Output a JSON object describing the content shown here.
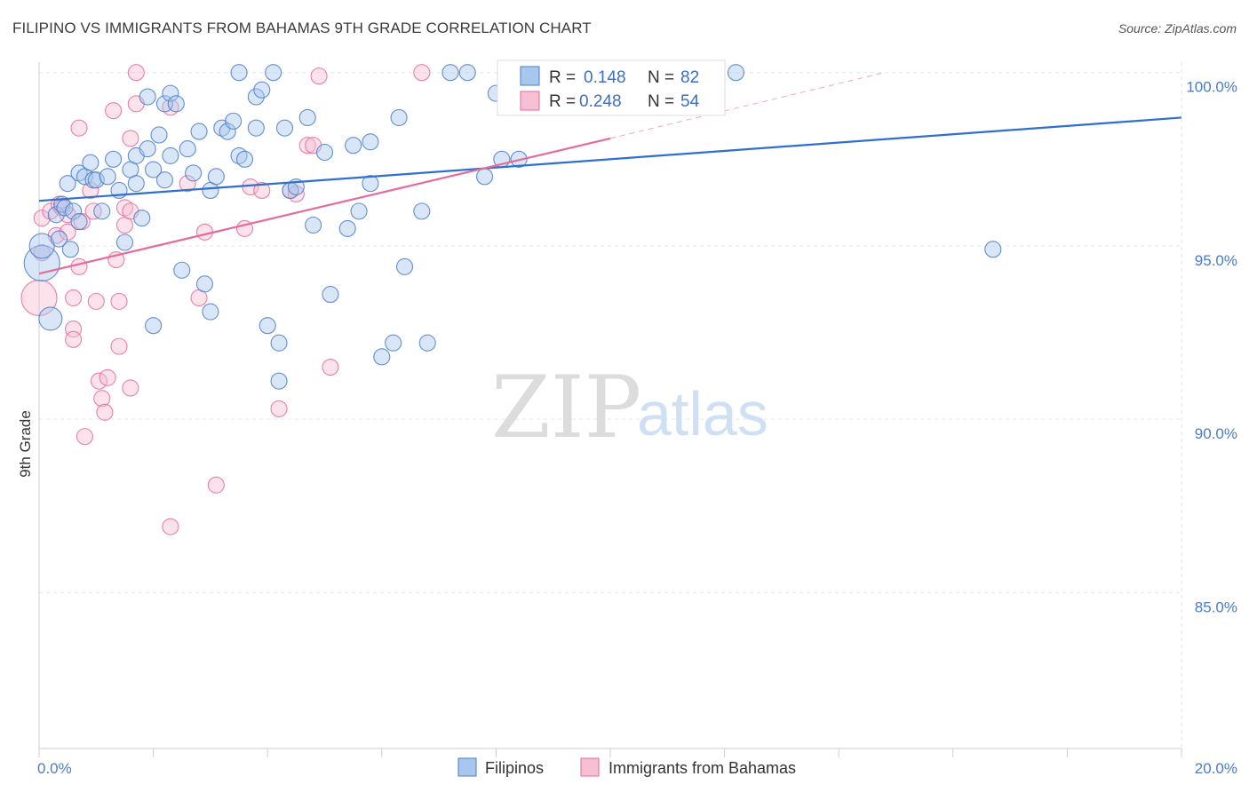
{
  "title": "FILIPINO VS IMMIGRANTS FROM BAHAMAS 9TH GRADE CORRELATION CHART",
  "source": "Source: ZipAtlas.com",
  "watermark": {
    "zip": "ZIP",
    "atlas": "atlas"
  },
  "colors": {
    "blue": "#4a7cc9",
    "blue_fill": "#a9c7ee",
    "blue_line": "#2f6fd0",
    "pink": "#e56b9b",
    "pink_fill": "#f7bfd3",
    "grid": "#e6e6e6"
  },
  "chart_data": {
    "type": "scatter",
    "title": "FILIPINO VS IMMIGRANTS FROM BAHAMAS 9TH GRADE CORRELATION CHART",
    "xlabel": "",
    "ylabel": "9th Grade",
    "xlim": [
      0,
      20
    ],
    "ylim": [
      80.5,
      100.3
    ],
    "x_tick_labels": [
      {
        "value": 0,
        "label": "0.0%"
      },
      {
        "value": 20,
        "label": "20.0%"
      }
    ],
    "y_tick_labels": [
      {
        "value": 100,
        "label": "100.0%"
      },
      {
        "value": 95,
        "label": "95.0%"
      },
      {
        "value": 90,
        "label": "90.0%"
      },
      {
        "value": 85,
        "label": "85.0%"
      }
    ],
    "legend": {
      "entries": [
        {
          "name": "Filipinos",
          "r_label": "R =",
          "r_value": "0.148",
          "n_label": "N =",
          "n_value": "82"
        },
        {
          "name": "Immigrants from Bahamas",
          "r_label": "R =",
          "r_value": "0.248",
          "n_label": "N =",
          "n_value": "54"
        }
      ]
    },
    "series": [
      {
        "name": "Filipinos",
        "trend": {
          "x": [
            0,
            20
          ],
          "y": [
            96.3,
            98.7
          ]
        },
        "points": [
          [
            0.05,
            94.5
          ],
          [
            0.05,
            95.0
          ],
          [
            0.2,
            92.9
          ],
          [
            0.3,
            95.9
          ],
          [
            0.35,
            95.2
          ],
          [
            0.4,
            96.2
          ],
          [
            0.45,
            96.1
          ],
          [
            0.5,
            96.8
          ],
          [
            0.55,
            94.9
          ],
          [
            0.6,
            96.0
          ],
          [
            0.7,
            95.7
          ],
          [
            0.7,
            97.1
          ],
          [
            0.8,
            97.0
          ],
          [
            0.9,
            97.4
          ],
          [
            0.95,
            96.9
          ],
          [
            1.0,
            96.9
          ],
          [
            1.1,
            96.0
          ],
          [
            1.2,
            97.0
          ],
          [
            1.3,
            97.5
          ],
          [
            1.4,
            96.6
          ],
          [
            1.5,
            95.1
          ],
          [
            1.6,
            97.2
          ],
          [
            1.7,
            96.8
          ],
          [
            1.7,
            97.6
          ],
          [
            1.8,
            95.8
          ],
          [
            1.9,
            97.8
          ],
          [
            2.0,
            97.2
          ],
          [
            1.9,
            99.3
          ],
          [
            2.0,
            92.7
          ],
          [
            2.2,
            96.9
          ],
          [
            2.1,
            98.2
          ],
          [
            2.2,
            99.1
          ],
          [
            2.3,
            99.4
          ],
          [
            2.4,
            99.1
          ],
          [
            2.3,
            97.6
          ],
          [
            2.5,
            94.3
          ],
          [
            2.6,
            97.8
          ],
          [
            2.7,
            97.1
          ],
          [
            2.8,
            98.3
          ],
          [
            2.9,
            93.9
          ],
          [
            3.0,
            93.1
          ],
          [
            3.0,
            96.6
          ],
          [
            3.1,
            97.0
          ],
          [
            3.2,
            98.4
          ],
          [
            3.3,
            98.3
          ],
          [
            3.4,
            98.6
          ],
          [
            3.5,
            100.0
          ],
          [
            3.5,
            97.6
          ],
          [
            3.6,
            97.5
          ],
          [
            3.8,
            98.4
          ],
          [
            3.8,
            99.3
          ],
          [
            3.9,
            99.5
          ],
          [
            4.0,
            92.7
          ],
          [
            4.1,
            100.0
          ],
          [
            4.2,
            92.2
          ],
          [
            4.2,
            91.1
          ],
          [
            4.3,
            98.4
          ],
          [
            4.4,
            96.6
          ],
          [
            4.5,
            96.7
          ],
          [
            4.7,
            98.7
          ],
          [
            4.8,
            95.6
          ],
          [
            5.0,
            97.7
          ],
          [
            5.1,
            93.6
          ],
          [
            5.4,
            95.5
          ],
          [
            5.5,
            97.9
          ],
          [
            5.6,
            96.0
          ],
          [
            5.8,
            96.8
          ],
          [
            5.8,
            98.0
          ],
          [
            6.0,
            91.8
          ],
          [
            6.2,
            92.2
          ],
          [
            6.3,
            98.7
          ],
          [
            6.4,
            94.4
          ],
          [
            6.7,
            96.0
          ],
          [
            6.8,
            92.2
          ],
          [
            7.2,
            100.0
          ],
          [
            7.5,
            100.0
          ],
          [
            7.8,
            97.0
          ],
          [
            8.0,
            99.4
          ],
          [
            8.1,
            97.5
          ],
          [
            8.4,
            97.5
          ],
          [
            8.7,
            100.0
          ],
          [
            12.2,
            100.0
          ],
          [
            16.7,
            94.9
          ]
        ],
        "sizes": [
          20,
          14,
          13,
          9,
          9,
          9,
          9,
          9,
          9,
          9,
          9,
          9,
          9,
          9,
          9,
          9,
          9,
          9,
          9,
          9,
          9,
          9,
          9,
          9,
          9,
          9,
          9,
          9,
          9,
          9,
          9,
          9,
          9,
          9,
          9,
          9,
          9,
          9,
          9,
          9,
          9,
          9,
          9,
          9,
          9,
          9,
          9,
          9,
          9,
          9,
          9,
          9,
          9,
          9,
          9,
          9,
          9,
          9,
          9,
          9,
          9,
          9,
          9,
          9,
          9,
          9,
          9,
          9,
          9,
          9,
          9,
          9,
          9,
          9,
          9,
          9,
          9,
          9,
          9,
          9,
          9,
          9,
          9
        ]
      },
      {
        "name": "Immigrants from Bahamas",
        "trend": {
          "x": [
            0,
            10
          ],
          "y": [
            94.2,
            98.1
          ]
        },
        "trend_dashed": {
          "x": [
            10,
            14.8
          ],
          "y": [
            98.1,
            100.0
          ]
        },
        "points": [
          [
            0.0,
            93.5
          ],
          [
            0.05,
            95.8
          ],
          [
            0.05,
            94.8
          ],
          [
            0.2,
            96.0
          ],
          [
            0.3,
            95.3
          ],
          [
            0.35,
            96.2
          ],
          [
            0.4,
            96.1
          ],
          [
            0.5,
            95.4
          ],
          [
            0.5,
            95.9
          ],
          [
            0.6,
            93.5
          ],
          [
            0.6,
            92.6
          ],
          [
            0.6,
            92.3
          ],
          [
            0.7,
            98.4
          ],
          [
            0.7,
            94.4
          ],
          [
            0.75,
            95.7
          ],
          [
            0.8,
            89.5
          ],
          [
            0.9,
            96.6
          ],
          [
            0.95,
            96.0
          ],
          [
            1.0,
            93.4
          ],
          [
            1.05,
            91.1
          ],
          [
            1.1,
            90.6
          ],
          [
            1.15,
            90.2
          ],
          [
            1.2,
            91.2
          ],
          [
            1.3,
            98.9
          ],
          [
            1.35,
            94.6
          ],
          [
            1.4,
            92.1
          ],
          [
            1.4,
            93.4
          ],
          [
            1.5,
            95.6
          ],
          [
            1.5,
            96.1
          ],
          [
            1.6,
            98.1
          ],
          [
            1.6,
            96.0
          ],
          [
            1.6,
            90.9
          ],
          [
            1.7,
            99.1
          ],
          [
            1.7,
            100.0
          ],
          [
            2.3,
            99.0
          ],
          [
            2.3,
            86.9
          ],
          [
            2.6,
            96.8
          ],
          [
            2.8,
            93.5
          ],
          [
            2.9,
            95.4
          ],
          [
            3.1,
            88.1
          ],
          [
            3.6,
            95.5
          ],
          [
            3.7,
            96.7
          ],
          [
            3.9,
            96.6
          ],
          [
            4.2,
            90.3
          ],
          [
            4.4,
            96.6
          ],
          [
            4.5,
            96.5
          ],
          [
            4.7,
            97.9
          ],
          [
            4.8,
            97.9
          ],
          [
            4.9,
            99.9
          ],
          [
            5.1,
            91.5
          ],
          [
            6.7,
            100.0
          ]
        ],
        "sizes": [
          20,
          9,
          9,
          9,
          9,
          9,
          9,
          9,
          9,
          9,
          9,
          9,
          9,
          9,
          9,
          9,
          9,
          9,
          9,
          9,
          9,
          9,
          9,
          9,
          9,
          9,
          9,
          9,
          9,
          9,
          9,
          9,
          9,
          9,
          9,
          9,
          9,
          9,
          9,
          9,
          9,
          9,
          9,
          9,
          9,
          9,
          9,
          9,
          9,
          9,
          9
        ]
      }
    ]
  }
}
